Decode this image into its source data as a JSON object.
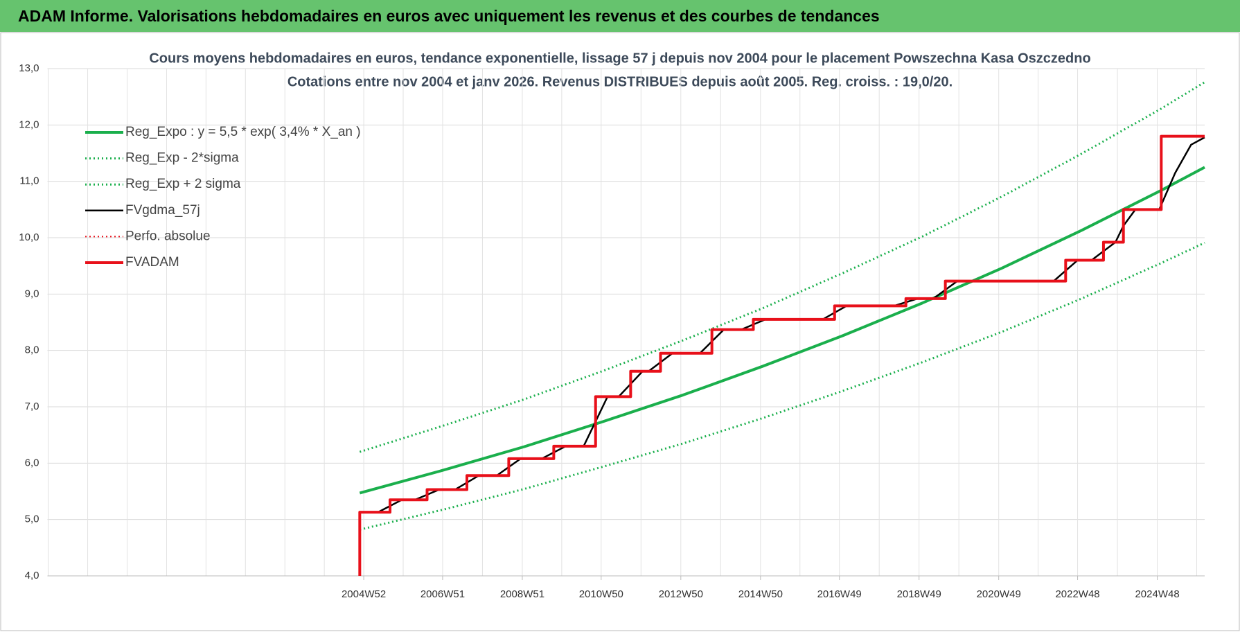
{
  "header": {
    "title": "ADAM Informe. Valorisations hebdomadaires en euros avec uniquement les revenus et des courbes de tendances"
  },
  "chart_data": {
    "type": "line",
    "title": "Cours moyens hebdomadaires en euros, tendance exponentielle, lissage 57 j depuis nov 2004  pour le placement Powszechna Kasa Oszczedno",
    "subtitle": "Cotations entre nov 2004 et janv 2026. Revenus DISTRIBUES depuis août 2005. Reg. croiss. : 19,0/20.",
    "xlim": [
      1997.04,
      2026.09
    ],
    "xticks": [
      {
        "value": 2004.98,
        "label": "2004W52"
      },
      {
        "value": 2006.96,
        "label": "2006W51"
      },
      {
        "value": 2008.96,
        "label": "2008W51"
      },
      {
        "value": 2010.94,
        "label": "2010W50"
      },
      {
        "value": 2012.94,
        "label": "2012W50"
      },
      {
        "value": 2014.94,
        "label": "2014W50"
      },
      {
        "value": 2016.92,
        "label": "2016W49"
      },
      {
        "value": 2018.92,
        "label": "2018W49"
      },
      {
        "value": 2020.92,
        "label": "2020W49"
      },
      {
        "value": 2022.9,
        "label": "2022W48"
      },
      {
        "value": 2024.9,
        "label": "2024W48"
      }
    ],
    "ylim": [
      4,
      13
    ],
    "yticks": [
      {
        "value": 4,
        "label": "4,0"
      },
      {
        "value": 5,
        "label": "5,0"
      },
      {
        "value": 6,
        "label": "6,0"
      },
      {
        "value": 7,
        "label": "7,0"
      },
      {
        "value": 8,
        "label": "8,0"
      },
      {
        "value": 9,
        "label": "9,0"
      },
      {
        "value": 10,
        "label": "10,0"
      },
      {
        "value": 11,
        "label": "11,0"
      },
      {
        "value": 12,
        "label": "12,0"
      },
      {
        "value": 13,
        "label": "13,0"
      }
    ],
    "grid": true,
    "legend": "upper left",
    "series": [
      {
        "name": "Reg_Expo : y = 5,5 * exp( 3,4% *  X_an )",
        "color": "#1aaf4c",
        "style": "solid",
        "width": 4,
        "x": [
          2004.88,
          2007,
          2009,
          2011,
          2013,
          2015,
          2017,
          2019,
          2021,
          2023,
          2025,
          2026.09
        ],
        "values": [
          5.47,
          5.88,
          6.29,
          6.74,
          7.21,
          7.72,
          8.26,
          8.84,
          9.46,
          10.13,
          10.84,
          11.25
        ]
      },
      {
        "name": "Reg_Exp - 2*sigma",
        "color": "#1aaf4c",
        "style": "dotted",
        "width": 3,
        "x": [
          2004.88,
          2007,
          2009,
          2011,
          2013,
          2015,
          2017,
          2019,
          2021,
          2023,
          2025,
          2026.09
        ],
        "values": [
          4.82,
          5.18,
          5.54,
          5.94,
          6.35,
          6.8,
          7.28,
          7.79,
          8.33,
          8.92,
          9.55,
          9.91
        ]
      },
      {
        "name": "Reg_Exp + 2 sigma",
        "color": "#1aaf4c",
        "style": "dotted",
        "width": 3,
        "x": [
          2004.88,
          2007,
          2009,
          2011,
          2013,
          2015,
          2017,
          2019,
          2021,
          2023,
          2025,
          2026.09
        ],
        "values": [
          6.2,
          6.67,
          7.13,
          7.64,
          8.18,
          8.75,
          9.37,
          10.02,
          10.73,
          11.49,
          12.29,
          12.76
        ]
      },
      {
        "name": "FVgdma_57j",
        "color": "#000000",
        "style": "solid",
        "width": 2.5,
        "x": [
          2004.88,
          2005.34,
          2005.64,
          2005.94,
          2006.27,
          2006.57,
          2006.87,
          2007.27,
          2007.57,
          2007.87,
          2008.32,
          2008.62,
          2008.92,
          2009.45,
          2009.75,
          2010.05,
          2010.5,
          2010.8,
          2011.1,
          2011.38,
          2011.68,
          2011.98,
          2012.13,
          2012.43,
          2012.73,
          2013.42,
          2013.72,
          2014.02,
          2014.46,
          2014.76,
          2015.06,
          2016.5,
          2016.8,
          2017.1,
          2018.29,
          2018.59,
          2018.89,
          2019.28,
          2019.58,
          2019.88,
          2022.3,
          2022.6,
          2022.9,
          2023.25,
          2023.55,
          2023.85,
          2024.05,
          2024.35,
          2024.95,
          2025.35,
          2025.75,
          2026.09
        ],
        "values": [
          5.13,
          5.13,
          5.24,
          5.35,
          5.35,
          5.44,
          5.53,
          5.53,
          5.655,
          5.78,
          5.78,
          5.93,
          6.08,
          6.08,
          6.19,
          6.3,
          6.3,
          6.74,
          7.18,
          7.18,
          7.405,
          7.63,
          7.63,
          7.79,
          7.95,
          7.95,
          8.16,
          8.37,
          8.37,
          8.46,
          8.55,
          8.55,
          8.67,
          8.79,
          8.79,
          8.855,
          8.92,
          8.92,
          9.075,
          9.23,
          9.23,
          9.415,
          9.6,
          9.6,
          9.76,
          9.92,
          10.21,
          10.5,
          10.5,
          11.15,
          11.65,
          11.78
        ]
      },
      {
        "name": "Perfo. absolue",
        "color": "#e8101a",
        "style": "dotted",
        "width": 2,
        "x": [],
        "values": []
      },
      {
        "name": "FVADAM",
        "color": "#e8101a",
        "style": "solid",
        "width": 4,
        "x": [
          2004.88,
          2004.88,
          2005.64,
          2005.64,
          2006.57,
          2006.57,
          2007.57,
          2007.57,
          2008.62,
          2008.62,
          2009.75,
          2009.75,
          2010.8,
          2010.8,
          2011.68,
          2011.68,
          2012.43,
          2012.43,
          2013.72,
          2013.72,
          2014.76,
          2014.76,
          2016.8,
          2016.8,
          2018.59,
          2018.59,
          2019.58,
          2019.58,
          2022.6,
          2022.6,
          2023.55,
          2023.55,
          2024.05,
          2024.05,
          2025,
          2025,
          2026.09
        ],
        "values": [
          4,
          5.13,
          5.13,
          5.35,
          5.35,
          5.53,
          5.53,
          5.78,
          5.78,
          6.08,
          6.08,
          6.3,
          6.3,
          7.18,
          7.18,
          7.63,
          7.63,
          7.95,
          7.95,
          8.37,
          8.37,
          8.55,
          8.55,
          8.79,
          8.79,
          8.92,
          8.92,
          9.23,
          9.23,
          9.6,
          9.6,
          9.92,
          9.92,
          10.5,
          10.5,
          11.8,
          11.8
        ]
      }
    ]
  }
}
